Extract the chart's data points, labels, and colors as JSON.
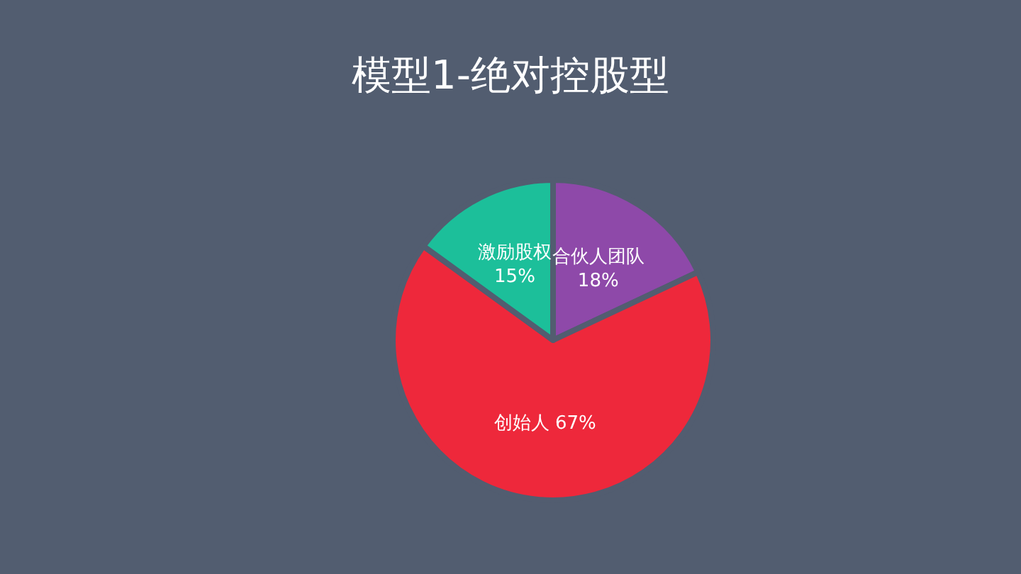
{
  "chart_data": {
    "type": "pie",
    "title": "模型1-绝对控股型",
    "categories": [
      "合伙人团队",
      "创始人",
      "激励股权"
    ],
    "values": [
      18,
      67,
      15
    ],
    "colors": [
      "#8e49a9",
      "#ee283b",
      "#1cbf9a"
    ],
    "value_labels": [
      "18%",
      "67%",
      "15%"
    ]
  }
}
